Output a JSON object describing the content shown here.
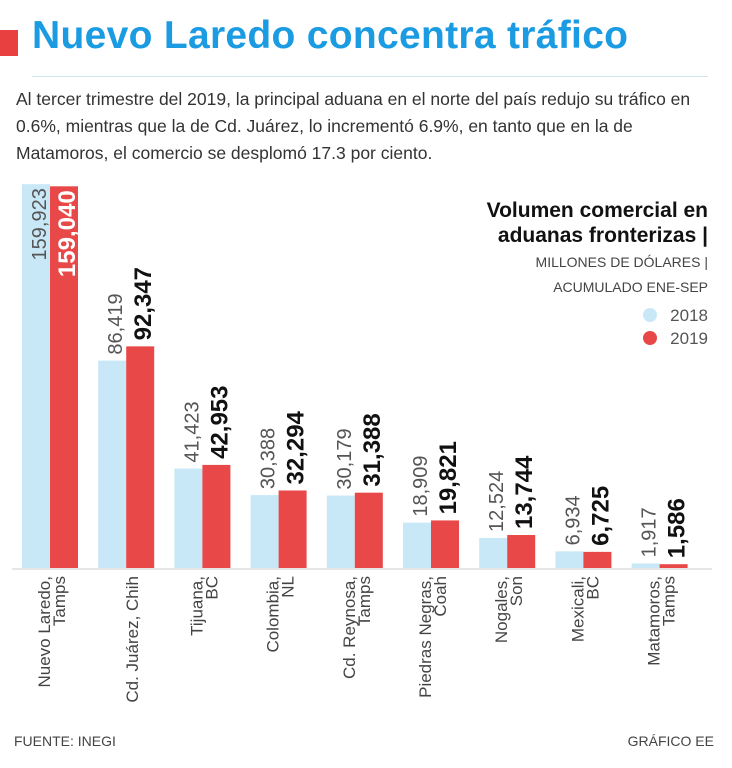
{
  "header": {
    "title": "Nuevo Laredo concentra  tráfico",
    "intro": "Al tercer trimestre del 2019, la principal aduana en el norte del país redujo su tráfico en 0.6%, mientras que la de Cd. Juárez, lo incrementó 6.9%, en tanto que en la de Matamoros, el comercio se desplomó 17.3 por ciento."
  },
  "legend": {
    "title_line1": "Volumen comercial en",
    "title_line2": "aduanas fronterizas |",
    "unit": "MILLONES DE DÓLARES |",
    "period": "ACUMULADO ENE-SEP"
  },
  "colors": {
    "s2018": "#c9e8f7",
    "s2019": "#e84848",
    "title": "#1a9be2"
  },
  "chart_data": {
    "type": "bar",
    "title": "Volumen comercial en aduanas fronterizas",
    "ylabel": "Millones de dólares, acumulado ene-sep",
    "ylim": [
      0,
      160000
    ],
    "categories": [
      [
        "Nuevo Laredo,",
        "Tamps"
      ],
      [
        "Cd. Juárez, Chih"
      ],
      [
        "Tijuana,",
        "BC"
      ],
      [
        "Colombia,",
        "NL"
      ],
      [
        "Cd. Reynosa,",
        "Tamps"
      ],
      [
        "Piedras Negras,",
        "Coah"
      ],
      [
        "Nogales,",
        "Son"
      ],
      [
        "Mexicali,",
        "BC"
      ],
      [
        "Matamoros,",
        "Tamps"
      ]
    ],
    "series": [
      {
        "name": "2018",
        "values": [
          159923,
          86419,
          41423,
          30388,
          30179,
          18909,
          12524,
          6934,
          1917
        ],
        "labels": [
          "159,923",
          "86,419",
          "41,423",
          "30,388",
          "30,179",
          "18,909",
          "12,524",
          "6,934",
          "1,917"
        ]
      },
      {
        "name": "2019",
        "values": [
          159040,
          92347,
          42953,
          32294,
          31388,
          19821,
          13744,
          6725,
          1586
        ],
        "labels": [
          "159,040",
          "92,347",
          "42,953",
          "32,294",
          "31,388",
          "19,821",
          "13,744",
          "6,725",
          "1,586"
        ]
      }
    ]
  },
  "footer": {
    "source": "FUENTE: INEGI",
    "credit": "GRÁFICO EE"
  }
}
